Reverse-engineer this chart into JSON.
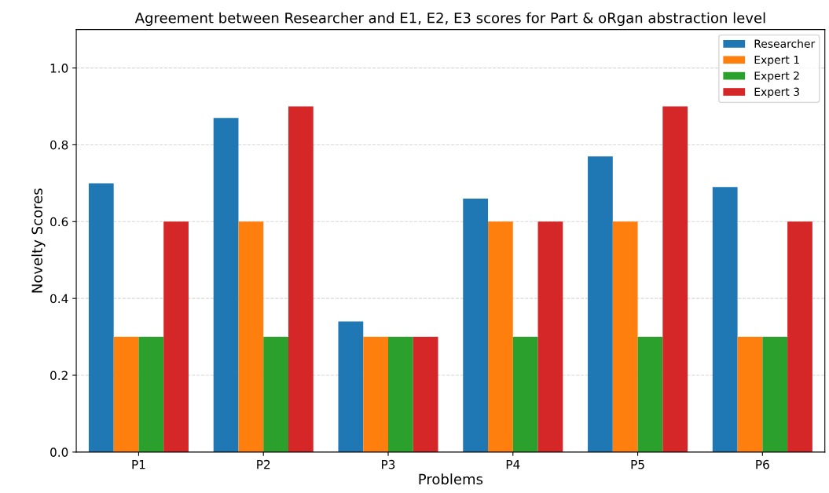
{
  "chart_data": {
    "type": "bar",
    "title": "Agreement between Researcher and E1, E2, E3 scores for Part & oRgan abstraction level",
    "xlabel": "Problems",
    "ylabel": "Novelty Scores",
    "categories": [
      "P1",
      "P2",
      "P3",
      "P4",
      "P5",
      "P6"
    ],
    "series": [
      {
        "name": "Researcher",
        "color": "#1f77b4",
        "values": [
          0.7,
          0.87,
          0.34,
          0.66,
          0.77,
          0.69
        ]
      },
      {
        "name": "Expert 1",
        "color": "#ff7f0e",
        "values": [
          0.3,
          0.6,
          0.3,
          0.6,
          0.6,
          0.3
        ]
      },
      {
        "name": "Expert 2",
        "color": "#2ca02c",
        "values": [
          0.3,
          0.3,
          0.3,
          0.3,
          0.3,
          0.3
        ]
      },
      {
        "name": "Expert 3",
        "color": "#d62728",
        "values": [
          0.6,
          0.9,
          0.3,
          0.6,
          0.9,
          0.6
        ]
      }
    ],
    "ylim": [
      0,
      1.1
    ],
    "yticks": [
      {
        "value": 0,
        "label": "0.0"
      },
      {
        "value": 0.2,
        "label": "0.2"
      },
      {
        "value": 0.4,
        "label": "0.4"
      },
      {
        "value": 0.6,
        "label": "0.6"
      },
      {
        "value": 0.8,
        "label": "0.8"
      },
      {
        "value": 1.0,
        "label": "1.0"
      }
    ],
    "grid": "y",
    "legend": "top right"
  }
}
